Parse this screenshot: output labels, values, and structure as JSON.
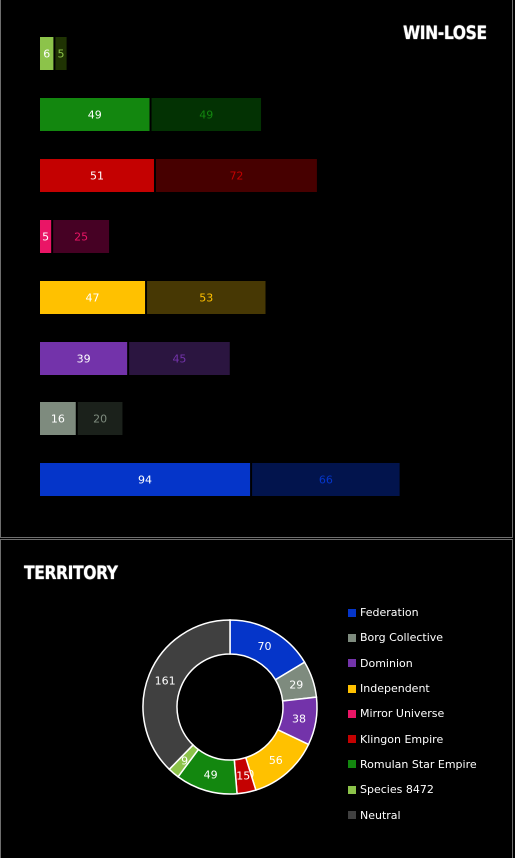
{
  "chart_data": [
    {
      "type": "bar",
      "title": "WIN-LOSE",
      "orientation": "horizontal",
      "stacked": true,
      "categories": [
        "Species 8472",
        "Romulan Star Empire",
        "Klingon Empire",
        "Mirror Universe",
        "Independent",
        "Dominion",
        "Borg Collective",
        "Federation"
      ],
      "series": [
        {
          "values": [
            6,
            49,
            51,
            5,
            47,
            39,
            16,
            94
          ]
        },
        {
          "values": [
            5,
            49,
            72,
            25,
            53,
            45,
            20,
            66
          ]
        }
      ],
      "colors": {
        "win": [
          "#8cc34a",
          "#13870f",
          "#c40101",
          "#ea1566",
          "#ffc100",
          "#7333aa",
          "#7e8b7e",
          "#0535c9"
        ],
        "lose": [
          "#1f3303",
          "#033203",
          "#470000",
          "#460124",
          "#473804",
          "#2b1540",
          "#1b211b",
          "#02144d"
        ],
        "lose_text": [
          "#8cc34a",
          "#13870f",
          "#c40101",
          "#ea1566",
          "#ffc100",
          "#7333aa",
          "#7e8b7e",
          "#0535c9"
        ]
      },
      "legend": "none",
      "grid": false
    },
    {
      "type": "pie",
      "subtype": "donut",
      "title": "TERRITORY",
      "labels": [
        "Federation",
        "Borg Collective",
        "Dominion",
        "Independent",
        "Mirror Universe",
        "Klingon Empire",
        "Romulan Star Empire",
        "Species 8472",
        "Neutral"
      ],
      "values": [
        70,
        29,
        38,
        56,
        0,
        15,
        49,
        9,
        161
      ],
      "colors": [
        "#0535c9",
        "#7e8b7e",
        "#7333aa",
        "#ffc100",
        "#ea1566",
        "#c40101",
        "#13870f",
        "#8cc34a",
        "#404040"
      ],
      "legend": "right"
    }
  ]
}
